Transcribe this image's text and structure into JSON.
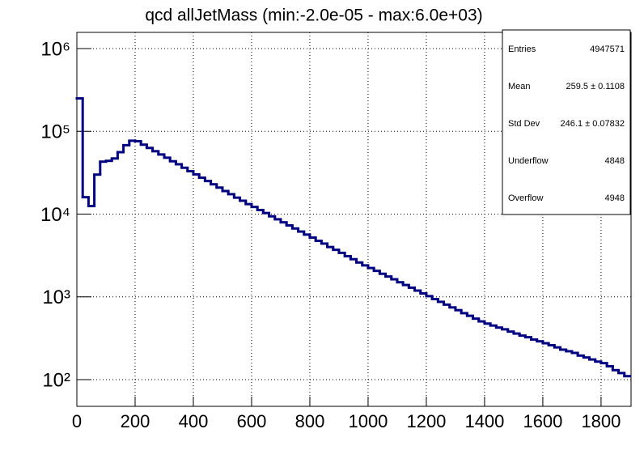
{
  "chart_data": {
    "type": "histogram",
    "title": "qcd allJetMass (min:-2.0e-05 - max:6.0e+03)",
    "color": "#000080",
    "log_y": true,
    "grid": true,
    "xlim": [
      0,
      1903
    ],
    "ylim": [
      47.5,
      1570000
    ],
    "xticks": [
      0,
      200,
      400,
      600,
      800,
      1000,
      1200,
      1400,
      1600,
      1800
    ],
    "yticks": [
      {
        "value": 100,
        "label": "10²"
      },
      {
        "value": 1000,
        "label": "10³"
      },
      {
        "value": 10000,
        "label": "10⁴"
      },
      {
        "value": 100000,
        "label": "10⁵"
      },
      {
        "value": 1000000,
        "label": "10⁶"
      }
    ],
    "bins": [
      0,
      20,
      40,
      60,
      80,
      100,
      120,
      140,
      160,
      180,
      200,
      220,
      240,
      260,
      280,
      300,
      320,
      340,
      360,
      380,
      400,
      420,
      440,
      460,
      480,
      500,
      520,
      540,
      560,
      580,
      600,
      620,
      640,
      660,
      680,
      700,
      720,
      740,
      760,
      780,
      800,
      820,
      840,
      860,
      880,
      900,
      920,
      940,
      960,
      980,
      1000,
      1020,
      1040,
      1060,
      1080,
      1100,
      1120,
      1140,
      1160,
      1180,
      1200,
      1220,
      1240,
      1260,
      1280,
      1300,
      1320,
      1340,
      1360,
      1380,
      1400,
      1420,
      1440,
      1460,
      1480,
      1500,
      1520,
      1540,
      1560,
      1580,
      1600,
      1620,
      1640,
      1660,
      1680,
      1700,
      1720,
      1740,
      1760,
      1780,
      1800,
      1820,
      1840,
      1860,
      1880,
      1900
    ],
    "values": [
      250000,
      16000,
      12500,
      30000,
      43000,
      44000,
      47000,
      56000,
      68000,
      77000,
      76000,
      69000,
      63000,
      57500,
      52500,
      48000,
      43500,
      40000,
      36300,
      33000,
      30200,
      27500,
      25100,
      22900,
      20900,
      19000,
      17400,
      15800,
      14500,
      13200,
      12200,
      11200,
      10300,
      9400,
      8650,
      7950,
      7300,
      6700,
      6150,
      5650,
      5200,
      4750,
      4400,
      4000,
      3700,
      3400,
      3100,
      2850,
      2600,
      2400,
      2230,
      2060,
      1900,
      1760,
      1630,
      1500,
      1390,
      1290,
      1190,
      1100,
      1020,
      940,
      870,
      805,
      745,
      690,
      635,
      590,
      545,
      505,
      475,
      450,
      425,
      405,
      380,
      360,
      340,
      325,
      305,
      290,
      275,
      260,
      245,
      230,
      220,
      210,
      195,
      185,
      175,
      165,
      158,
      145,
      130,
      120,
      110
    ],
    "stats": [
      [
        "Entries",
        "4947571"
      ],
      [
        "Mean",
        "259.5 ± 0.1108"
      ],
      [
        "Std Dev",
        "246.1 ± 0.07832"
      ],
      [
        "Underflow",
        "4848"
      ],
      [
        "Overflow",
        "4948"
      ]
    ]
  }
}
